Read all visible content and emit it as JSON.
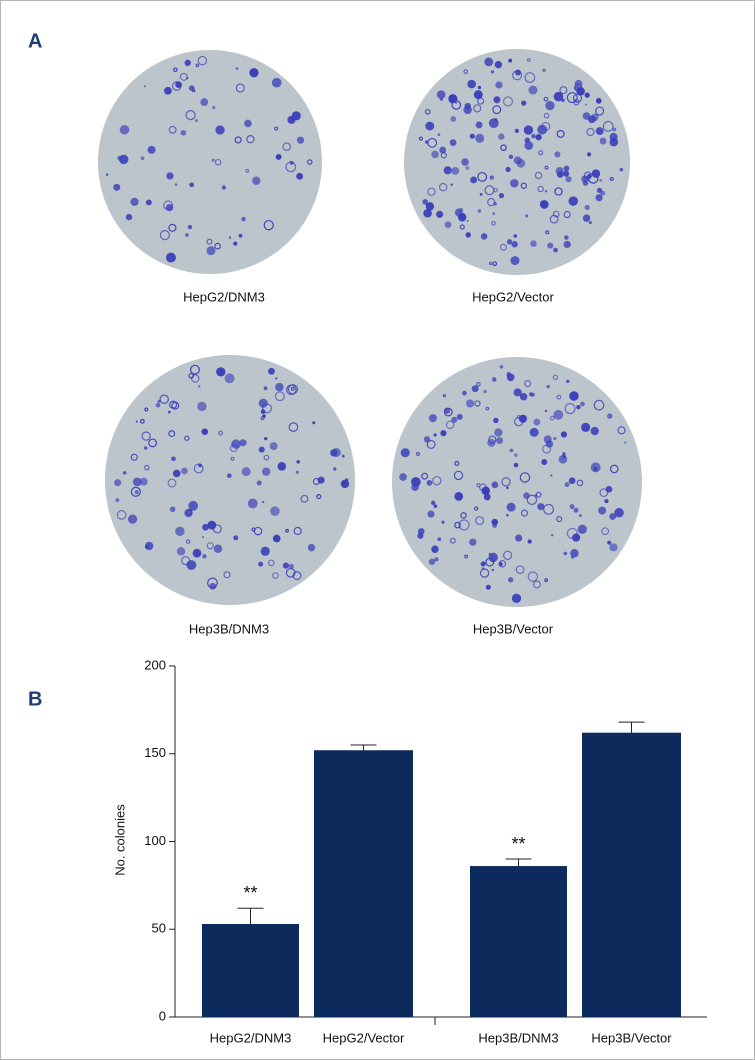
{
  "panel_a": {
    "label": "A",
    "plates": [
      "HepG2/DNM3",
      "HepG2/Vector",
      "Hep3B/DNM3",
      "Hep3B/Vector"
    ]
  },
  "chart_data": {
    "type": "bar",
    "panel_label": "B",
    "y_label": "No. colonies",
    "categories": [
      "HepG2/DNM3",
      "HepG2/Vector",
      "Hep3B/DNM3",
      "Hep3B/Vector"
    ],
    "values": [
      53,
      152,
      86,
      162
    ],
    "errors": [
      9,
      3,
      4,
      6
    ],
    "significance": [
      "**",
      null,
      "**",
      null
    ],
    "color": "#0c2a5c",
    "ylim": [
      0,
      200
    ],
    "yticks": [
      0,
      50,
      100,
      150,
      200
    ]
  }
}
